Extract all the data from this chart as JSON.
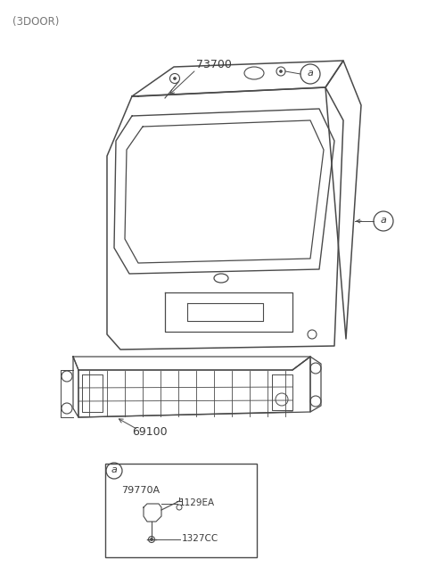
{
  "title": "(3DOOR)",
  "bg_color": "#ffffff",
  "line_color": "#4a4a4a",
  "text_color": "#3a3a3a",
  "label_73700": "73700",
  "label_69100": "69100",
  "label_a_circle": "a",
  "label_79770A": "79770A",
  "label_1129EA": "1129EA",
  "label_1327CC": "1327CC",
  "figsize": [
    4.8,
    6.55
  ],
  "dpi": 100
}
